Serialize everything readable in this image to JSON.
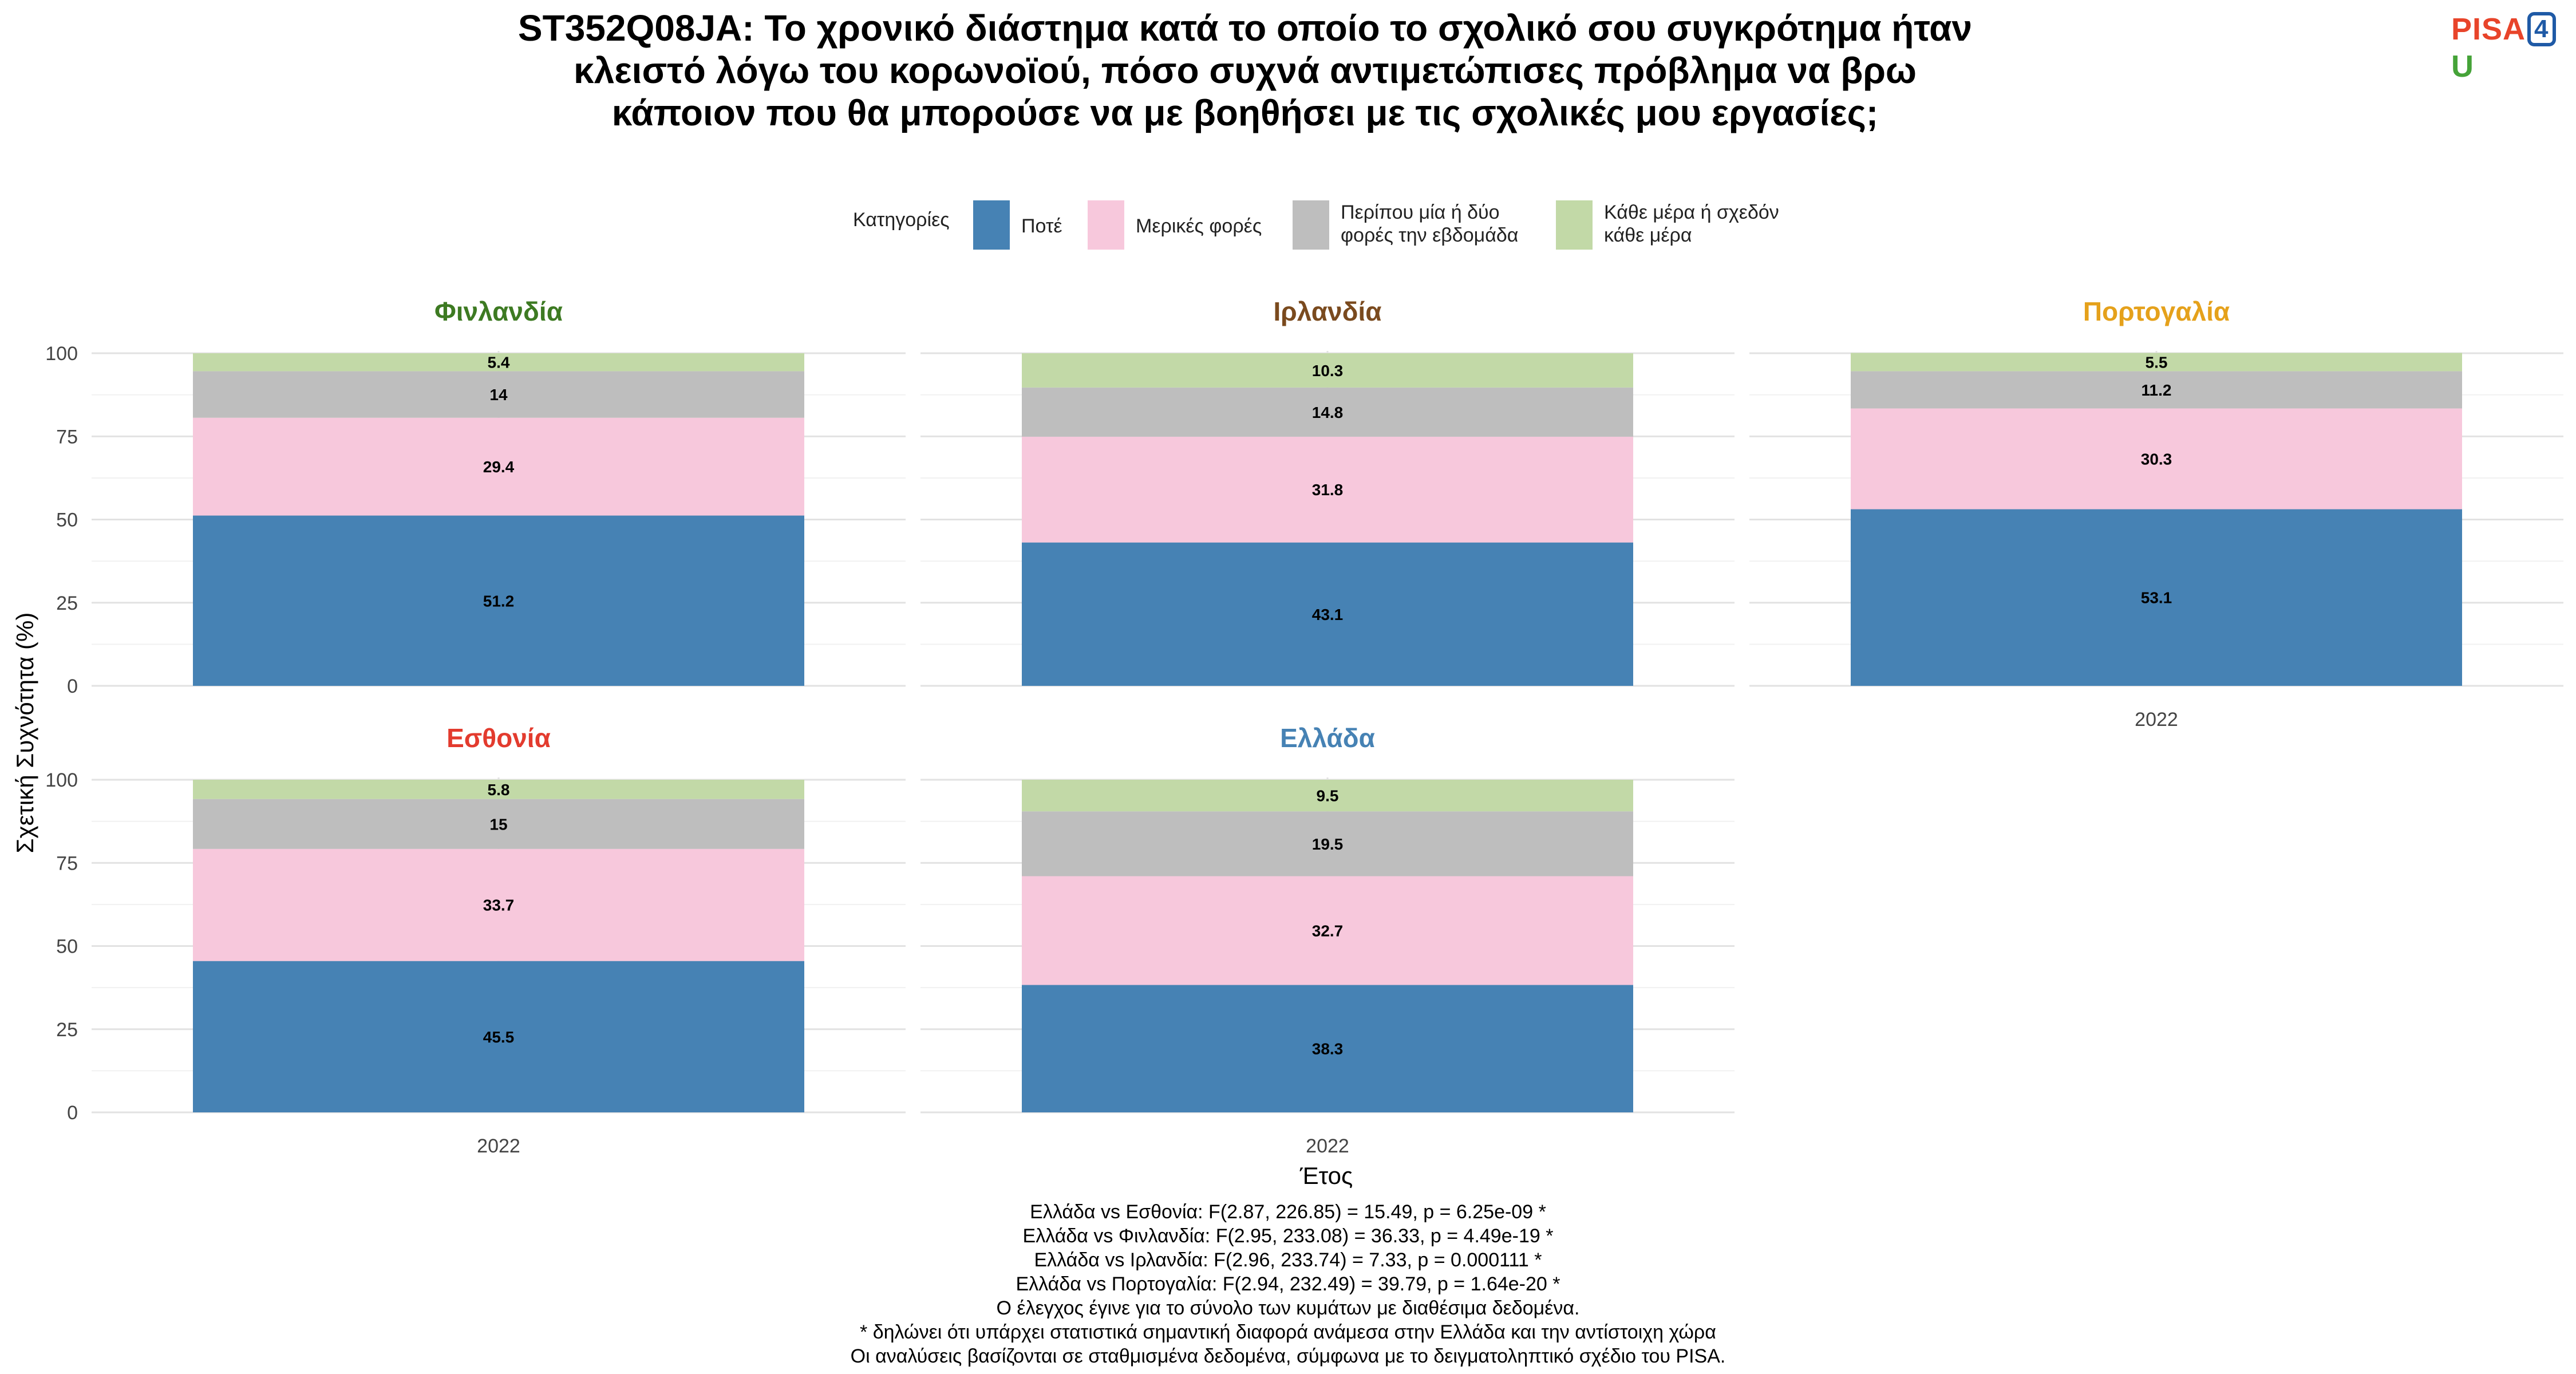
{
  "title": "ST352Q08JA: Το χρονικό διάστημα κατά το οποίο το σχολικό σου συγκρότημα ήταν κλειστό λόγω του κορωνοϊού, πόσο συχνά αντιμετώπισες πρόβλημα να βρω κάποιον που θα μπορούσε να με βοηθήσει με τις σχολικές μου εργασίες;",
  "logo": {
    "part1": "PISA",
    "part2": "4",
    "part3": "U"
  },
  "chart_data": {
    "type": "bar",
    "stacked": true,
    "legend_title": "Κατηγορίες",
    "legend_position": "top",
    "categories": [
      "Ποτέ",
      "Μερικές φορές",
      "Περίπου μία ή δύο φορές την εβδομάδα",
      "Κάθε μέρα ή σχεδόν κάθε μέρα"
    ],
    "category_lines": [
      [
        "Ποτέ"
      ],
      [
        "Μερικές φορές"
      ],
      [
        "Περίπου μία ή δύο",
        "φορές την εβδομάδα"
      ],
      [
        "Κάθε μέρα ή σχεδόν",
        "κάθε μέρα"
      ]
    ],
    "colors": [
      "#4682b4",
      "#f7c8dc",
      "#bebebe",
      "#c2d9a7"
    ],
    "xlabel": "Έτος",
    "ylabel": "Σχετική Συχνότητα (%)",
    "ylim": [
      0,
      100
    ],
    "yticks": [
      0,
      25,
      50,
      75,
      100
    ],
    "grid": true,
    "panels": [
      {
        "country": "Φινλανδία",
        "color": "#3d7a22",
        "x": "2022",
        "values": [
          51.2,
          29.4,
          14,
          5.4
        ],
        "show_x_axis": false
      },
      {
        "country": "Ιρλανδία",
        "color": "#7a4a1e",
        "x": "2022",
        "values": [
          43.1,
          31.8,
          14.8,
          10.3
        ],
        "show_x_axis": false
      },
      {
        "country": "Πορτογαλία",
        "color": "#e5a11b",
        "x": "2022",
        "values": [
          53.1,
          30.3,
          11.2,
          5.5
        ],
        "show_x_axis": true
      },
      {
        "country": "Εσθονία",
        "color": "#e33b2e",
        "x": "2022",
        "values": [
          45.5,
          33.7,
          15,
          5.8
        ],
        "show_x_axis": true
      },
      {
        "country": "Ελλάδα",
        "color": "#4682b4",
        "x": "2022",
        "values": [
          38.3,
          32.7,
          19.5,
          9.5
        ],
        "show_x_axis": true
      }
    ]
  },
  "notes": [
    "Ελλάδα vs Εσθονία: F(2.87, 226.85) = 15.49, p = 6.25e-09 *",
    "Ελλάδα vs Φινλανδία: F(2.95, 233.08) = 36.33, p = 4.49e-19 *",
    "Ελλάδα vs Ιρλανδία: F(2.96, 233.74) = 7.33, p = 0.000111 *",
    "Ελλάδα vs Πορτογαλία: F(2.94, 232.49) = 39.79, p = 1.64e-20 *",
    "Ο έλεγχος έγινε για το σύνολο των κυμάτων με διαθέσιμα δεδομένα.",
    "* δηλώνει ότι υπάρχει στατιστικά σημαντική διαφορά ανάμεσα στην Ελλάδα και την αντίστοιχη χώρα",
    "Οι αναλύσεις βασίζονται σε σταθμισμένα δεδομένα, σύμφωνα με το δειγματοληπτικό σχέδιο του PISA."
  ]
}
